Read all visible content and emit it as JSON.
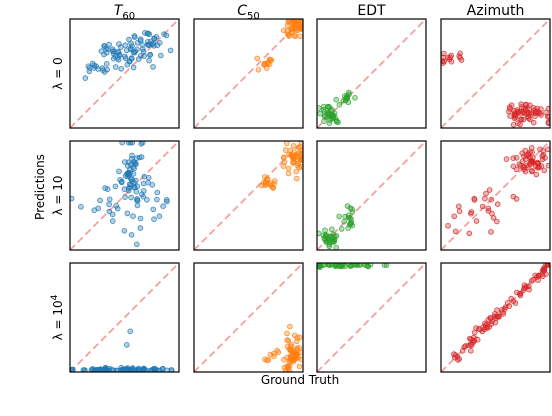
{
  "chart_data": {
    "type": "scatter",
    "xlabel": "Ground Truth",
    "ylabel": "Predictions",
    "xlim": [
      0,
      1
    ],
    "ylim": [
      0,
      1
    ],
    "columns": [
      {
        "key": "t60",
        "base": "T",
        "sub": "60",
        "italic": true,
        "color": "#1f77b4"
      },
      {
        "key": "c50",
        "base": "C",
        "sub": "50",
        "italic": true,
        "color": "#ff7f0e"
      },
      {
        "key": "edt",
        "base": "EDT",
        "sub": "",
        "italic": false,
        "color": "#2ca02c"
      },
      {
        "key": "azimuth",
        "base": "Azimuth",
        "sub": "",
        "italic": false,
        "color": "#d62728"
      }
    ],
    "rows": [
      {
        "label_base": "λ = 0",
        "label_sup": ""
      },
      {
        "label_base": "λ = 10",
        "label_sup": ""
      },
      {
        "label_base": "λ = 10",
        "label_sup": "4"
      }
    ],
    "panels": [
      [
        {
          "clusters": [
            {
              "cx": 0.55,
              "cy": 0.68,
              "sx": 0.16,
              "sy": 0.07,
              "n": 60
            },
            {
              "cx": 0.75,
              "cy": 0.82,
              "sx": 0.1,
              "sy": 0.04,
              "n": 20
            },
            {
              "cx": 0.3,
              "cy": 0.55,
              "sx": 0.08,
              "sy": 0.03,
              "n": 10
            },
            {
              "cx": 0.22,
              "cy": 0.58,
              "sx": 0.01,
              "sy": 0.02,
              "n": 3
            }
          ]
        },
        {
          "clusters": [
            {
              "cx": 0.93,
              "cy": 0.93,
              "sx": 0.06,
              "sy": 0.06,
              "n": 45
            },
            {
              "cx": 0.66,
              "cy": 0.6,
              "sx": 0.04,
              "sy": 0.03,
              "n": 12
            }
          ]
        },
        {
          "clusters": [
            {
              "cx": 0.12,
              "cy": 0.14,
              "sx": 0.05,
              "sy": 0.05,
              "n": 35
            },
            {
              "cx": 0.3,
              "cy": 0.28,
              "sx": 0.03,
              "sy": 0.02,
              "n": 12
            }
          ]
        },
        {
          "clusters": [
            {
              "cx": 0.1,
              "cy": 0.65,
              "sx": 0.06,
              "sy": 0.04,
              "n": 14
            },
            {
              "cx": 0.8,
              "cy": 0.14,
              "sx": 0.1,
              "sy": 0.05,
              "n": 60
            }
          ]
        }
      ],
      [
        {
          "clusters": [
            {
              "cx": 0.57,
              "cy": 0.7,
              "sx": 0.05,
              "sy": 0.15,
              "n": 55
            },
            {
              "cx": 0.7,
              "cy": 0.4,
              "sx": 0.12,
              "sy": 0.12,
              "n": 25
            },
            {
              "cx": 0.35,
              "cy": 0.42,
              "sx": 0.1,
              "sy": 0.1,
              "n": 15
            }
          ]
        },
        {
          "clusters": [
            {
              "cx": 0.93,
              "cy": 0.86,
              "sx": 0.05,
              "sy": 0.06,
              "n": 45
            },
            {
              "cx": 0.68,
              "cy": 0.62,
              "sx": 0.04,
              "sy": 0.03,
              "n": 15
            }
          ]
        },
        {
          "clusters": [
            {
              "cx": 0.12,
              "cy": 0.1,
              "sx": 0.04,
              "sy": 0.04,
              "n": 30
            },
            {
              "cx": 0.28,
              "cy": 0.28,
              "sx": 0.03,
              "sy": 0.06,
              "n": 18
            }
          ]
        },
        {
          "clusters": [
            {
              "cx": 0.82,
              "cy": 0.82,
              "sx": 0.08,
              "sy": 0.07,
              "n": 55
            },
            {
              "cx": 0.35,
              "cy": 0.35,
              "sx": 0.15,
              "sy": 0.15,
              "n": 25
            }
          ]
        }
      ],
      [
        {
          "clusters": [
            {
              "cx": 0.5,
              "cy": 0.02,
              "sx": 0.22,
              "sy": 0.01,
              "n": 80
            },
            {
              "cx": 0.55,
              "cy": 0.35,
              "sx": 0.01,
              "sy": 0.01,
              "n": 1
            },
            {
              "cx": 0.53,
              "cy": 0.25,
              "sx": 0.01,
              "sy": 0.01,
              "n": 1
            }
          ]
        },
        {
          "clusters": [
            {
              "cx": 0.9,
              "cy": 0.15,
              "sx": 0.05,
              "sy": 0.09,
              "n": 55
            },
            {
              "cx": 0.7,
              "cy": 0.14,
              "sx": 0.04,
              "sy": 0.03,
              "n": 8
            }
          ]
        },
        {
          "clusters": [
            {
              "cx": 0.22,
              "cy": 0.98,
              "sx": 0.16,
              "sy": 0.008,
              "n": 45
            }
          ]
        },
        {
          "clusters": [
            {
              "diagonal": true,
              "cx": 0.55,
              "cy": 0.55,
              "sx": 0.45,
              "sy": 0.03,
              "n": 90
            }
          ]
        }
      ]
    ]
  }
}
